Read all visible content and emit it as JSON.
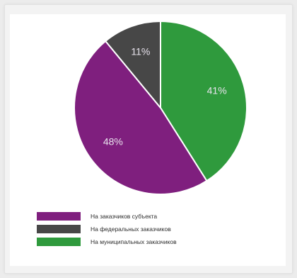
{
  "chart_data": {
    "type": "pie",
    "title": "",
    "slices": [
      {
        "name": "На муниципальных заказчиков",
        "value": 41,
        "label": "41%",
        "color": "#2f9a3d"
      },
      {
        "name": "На заказчиков субъекта",
        "value": 48,
        "label": "48%",
        "color": "#7f1f7e"
      },
      {
        "name": "На федеральных заказчиков",
        "value": 11,
        "label": "11%",
        "color": "#474747"
      }
    ],
    "legend": [
      {
        "label": "На заказчиков субъекта",
        "color": "#7f1f7e"
      },
      {
        "label": "На федеральных заказчиков",
        "color": "#474747"
      },
      {
        "label": "На муниципальных заказчиков",
        "color": "#2f9a3d"
      }
    ],
    "legend_position": "bottom-left"
  }
}
